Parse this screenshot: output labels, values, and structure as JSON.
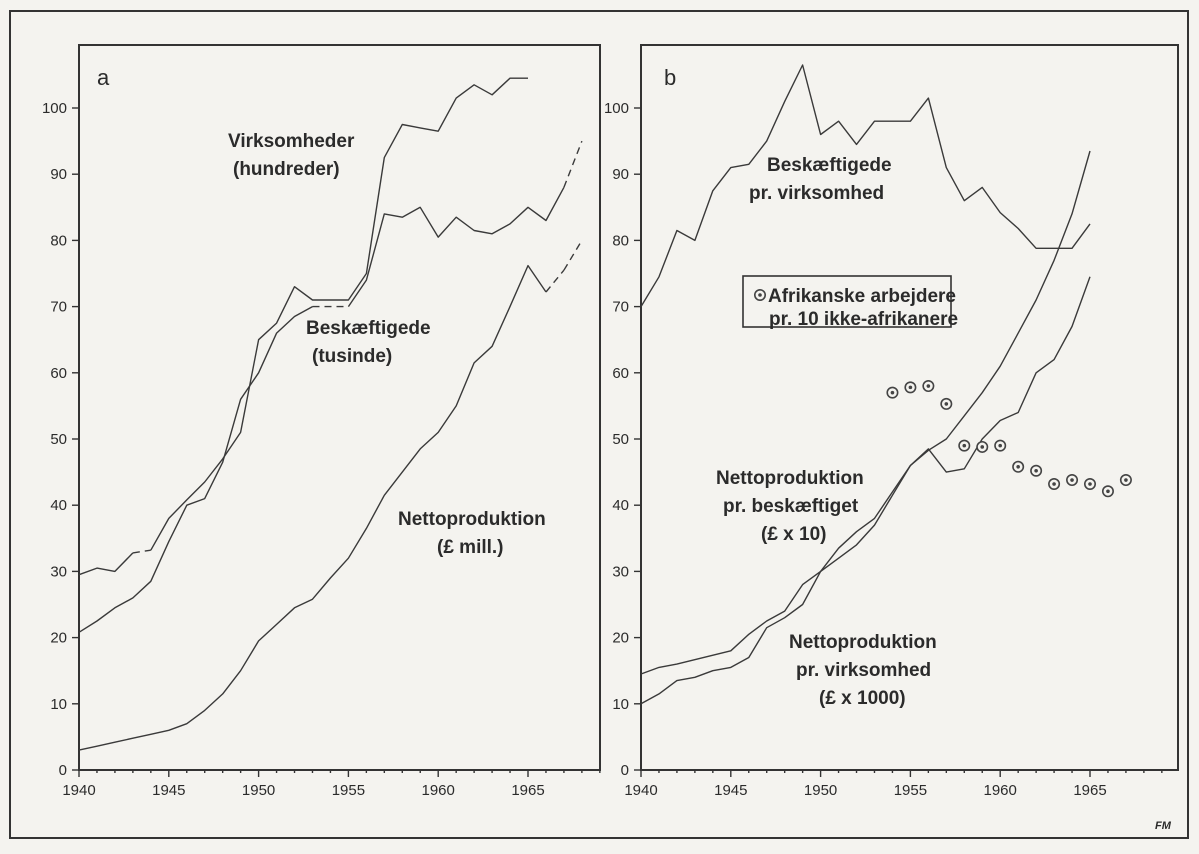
{
  "figure_credit": "FM",
  "chart_data": [
    {
      "type": "line",
      "panel_label": "a",
      "xlim": [
        1940,
        1969
      ],
      "ylim": [
        0,
        105
      ],
      "x_ticks": [
        1940,
        1945,
        1950,
        1955,
        1960,
        1965
      ],
      "y_ticks": [
        0,
        10,
        20,
        30,
        40,
        50,
        60,
        70,
        80,
        90,
        100
      ],
      "grid": false,
      "series": [
        {
          "label_lines": [
            "Virksomheder",
            "(hundreder)"
          ],
          "points": [
            [
              1940,
              29.5
            ],
            [
              1941,
              30.5
            ],
            [
              1942,
              30
            ],
            [
              1943,
              32.8
            ],
            [
              1944,
              33.2
            ],
            [
              1945,
              38
            ],
            [
              1946,
              40.8
            ],
            [
              1947,
              43.5
            ],
            [
              1948,
              47
            ],
            [
              1949,
              51
            ],
            [
              1950,
              65
            ],
            [
              1951,
              67.5
            ],
            [
              1952,
              73
            ],
            [
              1953,
              71
            ],
            [
              1955,
              71
            ],
            [
              1956,
              75
            ],
            [
              1957,
              92.5
            ],
            [
              1958,
              97.5
            ],
            [
              1959,
              97
            ],
            [
              1960,
              96.5
            ],
            [
              1961,
              101.5
            ],
            [
              1962,
              103.5
            ],
            [
              1963,
              102
            ],
            [
              1964,
              104.5
            ],
            [
              1965,
              104.5
            ]
          ],
          "dashed_segments": [
            [
              3,
              4
            ]
          ]
        },
        {
          "label_lines": [
            "Beskæftigede",
            "(tusinde)"
          ],
          "points": [
            [
              1940,
              20.8
            ],
            [
              1941,
              22.5
            ],
            [
              1942,
              24.5
            ],
            [
              1943,
              26
            ],
            [
              1944,
              28.5
            ],
            [
              1945,
              34.5
            ],
            [
              1946,
              40
            ],
            [
              1947,
              41
            ],
            [
              1948,
              46.5
            ],
            [
              1949,
              56
            ],
            [
              1950,
              60
            ],
            [
              1951,
              66
            ],
            [
              1952,
              68.5
            ],
            [
              1953,
              70
            ],
            [
              1955,
              70
            ],
            [
              1956,
              74
            ],
            [
              1957,
              84
            ],
            [
              1958,
              83.5
            ],
            [
              1959,
              85
            ],
            [
              1960,
              80.5
            ],
            [
              1961,
              83.5
            ],
            [
              1962,
              81.5
            ],
            [
              1963,
              81
            ],
            [
              1964,
              82.5
            ],
            [
              1965,
              85
            ],
            [
              1966,
              83
            ],
            [
              1967,
              88
            ],
            [
              1968,
              95
            ]
          ],
          "dashed_segments": [
            [
              13,
              14
            ],
            [
              26,
              27
            ]
          ]
        },
        {
          "label_lines": [
            "Nettoproduktion",
            "(£ mill.)"
          ],
          "points": [
            [
              1940,
              3
            ],
            [
              1941,
              3.6
            ],
            [
              1942,
              4.2
            ],
            [
              1943,
              4.8
            ],
            [
              1944,
              5.4
            ],
            [
              1945,
              6
            ],
            [
              1946,
              7
            ],
            [
              1947,
              9
            ],
            [
              1948,
              11.5
            ],
            [
              1949,
              15
            ],
            [
              1950,
              19.5
            ],
            [
              1951,
              22
            ],
            [
              1952,
              24.5
            ],
            [
              1953,
              25.8
            ],
            [
              1954,
              29
            ],
            [
              1955,
              32
            ],
            [
              1956,
              36.5
            ],
            [
              1957,
              41.5
            ],
            [
              1958,
              45
            ],
            [
              1959,
              48.5
            ],
            [
              1960,
              51
            ],
            [
              1961,
              55
            ],
            [
              1962,
              61.5
            ],
            [
              1963,
              64
            ],
            [
              1964,
              70
            ],
            [
              1965,
              76.2
            ],
            [
              1966,
              72.2
            ],
            [
              1967,
              75.5
            ],
            [
              1968,
              80
            ]
          ],
          "dashed_segments": [
            [
              26,
              27
            ],
            [
              27,
              28
            ]
          ]
        }
      ]
    },
    {
      "type": "line+scatter",
      "panel_label": "b",
      "xlim": [
        1940,
        1969
      ],
      "ylim": [
        0,
        105
      ],
      "x_ticks": [
        1940,
        1945,
        1950,
        1955,
        1960,
        1965
      ],
      "y_ticks": [
        0,
        10,
        20,
        30,
        40,
        50,
        60,
        70,
        80,
        90,
        100
      ],
      "grid": false,
      "series": [
        {
          "label_lines": [
            "Beskæftigede",
            "pr. virksomhed"
          ],
          "points": [
            [
              1940,
              70
            ],
            [
              1941,
              74.5
            ],
            [
              1942,
              81.5
            ],
            [
              1943,
              80
            ],
            [
              1944,
              87.5
            ],
            [
              1945,
              91
            ],
            [
              1946,
              91.5
            ],
            [
              1947,
              95
            ],
            [
              1948,
              101
            ],
            [
              1949,
              106.5
            ],
            [
              1950,
              96
            ],
            [
              1951,
              98
            ],
            [
              1952,
              94.5
            ],
            [
              1953,
              98
            ],
            [
              1955,
              98
            ],
            [
              1956,
              101.5
            ],
            [
              1957,
              91
            ],
            [
              1958,
              86
            ],
            [
              1959,
              88
            ],
            [
              1960,
              84.2
            ],
            [
              1961,
              81.8
            ],
            [
              1962,
              78.8
            ],
            [
              1964,
              78.8
            ],
            [
              1965,
              82.5
            ]
          ],
          "dashed_segments": []
        },
        {
          "label_lines": [
            "Nettoproduktion",
            "pr. beskæftiget",
            "(£ x 10)"
          ],
          "points": [
            [
              1940,
              14.5
            ],
            [
              1941,
              15.5
            ],
            [
              1942,
              16
            ],
            [
              1945,
              18
            ],
            [
              1946,
              20.5
            ],
            [
              1947,
              22.5
            ],
            [
              1948,
              24
            ],
            [
              1949,
              28
            ],
            [
              1950,
              30
            ],
            [
              1951,
              32
            ],
            [
              1952,
              34
            ],
            [
              1953,
              37
            ],
            [
              1954,
              41.5
            ],
            [
              1955,
              46
            ],
            [
              1956,
              48.5
            ],
            [
              1957,
              45
            ],
            [
              1958,
              45.5
            ],
            [
              1959,
              50
            ],
            [
              1960,
              52.8
            ],
            [
              1961,
              54
            ],
            [
              1962,
              60
            ],
            [
              1963,
              62
            ],
            [
              1964,
              67
            ],
            [
              1965,
              74.5
            ]
          ],
          "dashed_segments": []
        },
        {
          "label_lines": [
            "Nettoproduktion",
            "pr. virksomhed",
            "(£ x 1000)"
          ],
          "points": [
            [
              1940,
              10
            ],
            [
              1941,
              11.5
            ],
            [
              1942,
              13.5
            ],
            [
              1943,
              14
            ],
            [
              1944,
              15
            ],
            [
              1945,
              15.5
            ],
            [
              1946,
              17
            ],
            [
              1947,
              21.5
            ],
            [
              1948,
              23
            ],
            [
              1949,
              25
            ],
            [
              1950,
              30
            ],
            [
              1951,
              33.5
            ],
            [
              1952,
              36
            ],
            [
              1953,
              38
            ],
            [
              1954,
              42
            ],
            [
              1955,
              46
            ],
            [
              1956,
              48.3
            ],
            [
              1957,
              50
            ],
            [
              1958,
              53.5
            ],
            [
              1959,
              57
            ],
            [
              1960,
              61
            ],
            [
              1961,
              66
            ],
            [
              1962,
              71
            ],
            [
              1963,
              77
            ],
            [
              1964,
              84
            ],
            [
              1965,
              93.5
            ]
          ],
          "dashed_segments": []
        }
      ],
      "scatter": {
        "legend_lines": [
          "Afrikanske arbejdere",
          "pr. 10 ikke-afrikanere"
        ],
        "legend_position": "upper-middle, boxed",
        "points": [
          [
            1954,
            57
          ],
          [
            1955,
            57.8
          ],
          [
            1956,
            58
          ],
          [
            1957,
            55.3
          ],
          [
            1958,
            49
          ],
          [
            1959,
            48.8
          ],
          [
            1960,
            49
          ],
          [
            1961,
            45.8
          ],
          [
            1962,
            45.2
          ],
          [
            1963,
            43.2
          ],
          [
            1964,
            43.8
          ],
          [
            1965,
            43.2
          ],
          [
            1966,
            42.1
          ],
          [
            1967,
            43.8
          ]
        ]
      }
    }
  ]
}
